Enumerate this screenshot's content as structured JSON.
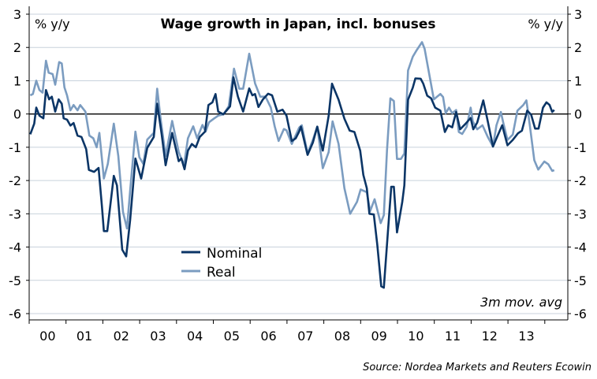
{
  "chart_data": {
    "type": "line",
    "title": "Wage growth in Japan, incl. bonuses",
    "ylabel_left": "% y/y",
    "ylabel_right": "% y/y",
    "ylim": [
      -6,
      3
    ],
    "yticks": [
      3,
      2,
      1,
      0,
      -1,
      -2,
      -3,
      -4,
      -5,
      -6
    ],
    "xlim": [
      2000,
      2014.6
    ],
    "xtick_labels": [
      "00",
      "01",
      "02",
      "03",
      "04",
      "05",
      "06",
      "07",
      "08",
      "09",
      "10",
      "11",
      "12",
      "13"
    ],
    "grid": true,
    "legend_position": "bottom-left-inside",
    "annotation": "3m mov. avg",
    "source": "Source: Nordea Markets and Reuters Ecowin",
    "colors": {
      "Nominal": "#0b3566",
      "Real": "#7b9cc0",
      "grid": "#c8d2dc"
    },
    "series": [
      {
        "name": "Nominal",
        "points": [
          [
            2000.03,
            -0.61
          ],
          [
            2000.136,
            -0.29
          ],
          [
            2000.193,
            0.19
          ],
          [
            2000.278,
            -0.05
          ],
          [
            2000.385,
            -0.13
          ],
          [
            2000.457,
            0.72
          ],
          [
            2000.542,
            0.44
          ],
          [
            2000.614,
            0.52
          ],
          [
            2000.707,
            0.07
          ],
          [
            2000.8,
            0.44
          ],
          [
            2000.885,
            0.31
          ],
          [
            2000.935,
            -0.13
          ],
          [
            2001.028,
            -0.17
          ],
          [
            2001.12,
            -0.35
          ],
          [
            2001.206,
            -0.27
          ],
          [
            2001.313,
            -0.65
          ],
          [
            2001.42,
            -0.69
          ],
          [
            2001.549,
            -1.06
          ],
          [
            2001.62,
            -1.68
          ],
          [
            2001.763,
            -1.74
          ],
          [
            2001.884,
            -1.62
          ],
          [
            2001.977,
            -2.79
          ],
          [
            2002.027,
            -3.52
          ],
          [
            2002.12,
            -3.52
          ],
          [
            2002.298,
            -1.86
          ],
          [
            2002.384,
            -2.15
          ],
          [
            2002.527,
            -4.08
          ],
          [
            2002.634,
            -4.28
          ],
          [
            2002.741,
            -3.19
          ],
          [
            2002.884,
            -1.34
          ],
          [
            2003.041,
            -1.94
          ],
          [
            2003.205,
            -1.02
          ],
          [
            2003.383,
            -0.69
          ],
          [
            2003.476,
            0.31
          ],
          [
            2003.597,
            -0.61
          ],
          [
            2003.704,
            -1.54
          ],
          [
            2003.883,
            -0.57
          ],
          [
            2004.061,
            -1.42
          ],
          [
            2004.133,
            -1.34
          ],
          [
            2004.218,
            -1.66
          ],
          [
            2004.311,
            -1.1
          ],
          [
            2004.418,
            -0.9
          ],
          [
            2004.525,
            -1.0
          ],
          [
            2004.632,
            -0.69
          ],
          [
            2004.775,
            -0.53
          ],
          [
            2004.868,
            0.27
          ],
          [
            2004.975,
            0.35
          ],
          [
            2005.06,
            0.6
          ],
          [
            2005.132,
            0.07
          ],
          [
            2005.275,
            -0.01
          ],
          [
            2005.453,
            0.23
          ],
          [
            2005.546,
            1.1
          ],
          [
            2005.668,
            0.52
          ],
          [
            2005.81,
            0.07
          ],
          [
            2005.975,
            0.77
          ],
          [
            2006.06,
            0.56
          ],
          [
            2006.132,
            0.6
          ],
          [
            2006.224,
            0.21
          ],
          [
            2006.346,
            0.44
          ],
          [
            2006.488,
            0.61
          ],
          [
            2006.595,
            0.56
          ],
          [
            2006.738,
            0.07
          ],
          [
            2006.88,
            0.13
          ],
          [
            2006.988,
            -0.05
          ],
          [
            2007.13,
            -0.81
          ],
          [
            2007.237,
            -0.73
          ],
          [
            2007.33,
            -0.53
          ],
          [
            2007.38,
            -0.38
          ],
          [
            2007.559,
            -1.23
          ],
          [
            2007.702,
            -0.86
          ],
          [
            2007.823,
            -0.38
          ],
          [
            2007.973,
            -1.1
          ],
          [
            2008.13,
            -0.06
          ],
          [
            2008.223,
            0.91
          ],
          [
            2008.401,
            0.43
          ],
          [
            2008.559,
            -0.14
          ],
          [
            2008.702,
            -0.5
          ],
          [
            2008.83,
            -0.54
          ],
          [
            2008.987,
            -1.1
          ],
          [
            2009.073,
            -1.83
          ],
          [
            2009.166,
            -2.23
          ],
          [
            2009.237,
            -3.0
          ],
          [
            2009.358,
            -3.02
          ],
          [
            2009.451,
            -3.93
          ],
          [
            2009.558,
            -5.18
          ],
          [
            2009.63,
            -5.22
          ],
          [
            2009.737,
            -3.6
          ],
          [
            2009.83,
            -2.19
          ],
          [
            2009.901,
            -2.19
          ],
          [
            2009.987,
            -3.56
          ],
          [
            2010.13,
            -2.64
          ],
          [
            2010.187,
            -2.15
          ],
          [
            2010.287,
            0.43
          ],
          [
            2010.415,
            0.79
          ],
          [
            2010.487,
            1.07
          ],
          [
            2010.63,
            1.06
          ],
          [
            2010.701,
            0.91
          ],
          [
            2010.808,
            0.55
          ],
          [
            2010.915,
            0.47
          ],
          [
            2011.023,
            0.19
          ],
          [
            2011.165,
            0.1
          ],
          [
            2011.287,
            -0.54
          ],
          [
            2011.38,
            -0.34
          ],
          [
            2011.487,
            -0.4
          ],
          [
            2011.594,
            0.06
          ],
          [
            2011.701,
            -0.46
          ],
          [
            2011.844,
            -0.3
          ],
          [
            2011.987,
            -0.12
          ],
          [
            2012.058,
            -0.46
          ],
          [
            2012.165,
            -0.26
          ],
          [
            2012.33,
            0.41
          ],
          [
            2012.451,
            -0.22
          ],
          [
            2012.594,
            -0.98
          ],
          [
            2012.701,
            -0.7
          ],
          [
            2012.844,
            -0.34
          ],
          [
            2012.987,
            -0.94
          ],
          [
            2013.13,
            -0.78
          ],
          [
            2013.273,
            -0.58
          ],
          [
            2013.38,
            -0.5
          ],
          [
            2013.522,
            0.1
          ],
          [
            2013.63,
            -0.02
          ],
          [
            2013.737,
            -0.44
          ],
          [
            2013.83,
            -0.44
          ],
          [
            2013.951,
            0.19
          ],
          [
            2014.044,
            0.35
          ],
          [
            2014.13,
            0.27
          ],
          [
            2014.201,
            0.06
          ],
          [
            2014.258,
            0.12
          ]
        ]
      },
      {
        "name": "Real",
        "points": [
          [
            2000.03,
            0.56
          ],
          [
            2000.1,
            0.6
          ],
          [
            2000.193,
            1.0
          ],
          [
            2000.278,
            0.72
          ],
          [
            2000.364,
            0.64
          ],
          [
            2000.457,
            1.6
          ],
          [
            2000.528,
            1.24
          ],
          [
            2000.635,
            1.2
          ],
          [
            2000.707,
            0.88
          ],
          [
            2000.814,
            1.56
          ],
          [
            2000.885,
            1.52
          ],
          [
            2000.957,
            0.8
          ],
          [
            2001.028,
            0.56
          ],
          [
            2001.12,
            0.11
          ],
          [
            2001.206,
            0.27
          ],
          [
            2001.313,
            0.11
          ],
          [
            2001.385,
            0.27
          ],
          [
            2001.527,
            0.07
          ],
          [
            2001.634,
            -0.65
          ],
          [
            2001.741,
            -0.73
          ],
          [
            2001.834,
            -1.0
          ],
          [
            2001.906,
            -0.57
          ],
          [
            2002.027,
            -1.94
          ],
          [
            2002.134,
            -1.5
          ],
          [
            2002.298,
            -0.29
          ],
          [
            2002.419,
            -1.26
          ],
          [
            2002.548,
            -2.95
          ],
          [
            2002.655,
            -3.44
          ],
          [
            2002.741,
            -2.31
          ],
          [
            2002.884,
            -0.53
          ],
          [
            2002.991,
            -1.3
          ],
          [
            2003.098,
            -1.5
          ],
          [
            2003.205,
            -0.77
          ],
          [
            2003.383,
            -0.57
          ],
          [
            2003.476,
            0.76
          ],
          [
            2003.576,
            -0.21
          ],
          [
            2003.704,
            -1.26
          ],
          [
            2003.883,
            -0.21
          ],
          [
            2004.061,
            -1.14
          ],
          [
            2004.204,
            -1.54
          ],
          [
            2004.311,
            -0.73
          ],
          [
            2004.454,
            -0.37
          ],
          [
            2004.561,
            -0.73
          ],
          [
            2004.704,
            -0.33
          ],
          [
            2004.79,
            -0.53
          ],
          [
            2004.882,
            -0.25
          ],
          [
            2005.025,
            -0.13
          ],
          [
            2005.132,
            -0.05
          ],
          [
            2005.275,
            -0.01
          ],
          [
            2005.418,
            0.23
          ],
          [
            2005.56,
            1.36
          ],
          [
            2005.703,
            0.76
          ],
          [
            2005.81,
            0.76
          ],
          [
            2005.975,
            1.81
          ],
          [
            2006.132,
            0.92
          ],
          [
            2006.274,
            0.52
          ],
          [
            2006.417,
            0.52
          ],
          [
            2006.56,
            0.19
          ],
          [
            2006.667,
            -0.37
          ],
          [
            2006.774,
            -0.81
          ],
          [
            2006.916,
            -0.45
          ],
          [
            2006.988,
            -0.49
          ],
          [
            2007.13,
            -0.9
          ],
          [
            2007.33,
            -0.41
          ],
          [
            2007.402,
            -0.34
          ],
          [
            2007.559,
            -1.19
          ],
          [
            2007.702,
            -0.78
          ],
          [
            2007.823,
            -0.38
          ],
          [
            2007.973,
            -1.63
          ],
          [
            2008.13,
            -1.15
          ],
          [
            2008.237,
            -0.22
          ],
          [
            2008.401,
            -0.9
          ],
          [
            2008.559,
            -2.23
          ],
          [
            2008.716,
            -3.0
          ],
          [
            2008.901,
            -2.64
          ],
          [
            2009.001,
            -2.27
          ],
          [
            2009.166,
            -2.35
          ],
          [
            2009.258,
            -2.92
          ],
          [
            2009.38,
            -2.56
          ],
          [
            2009.544,
            -3.28
          ],
          [
            2009.63,
            -3.04
          ],
          [
            2009.716,
            -1.1
          ],
          [
            2009.808,
            0.47
          ],
          [
            2009.901,
            0.39
          ],
          [
            2009.987,
            -1.35
          ],
          [
            2010.094,
            -1.35
          ],
          [
            2010.187,
            -1.19
          ],
          [
            2010.287,
            1.31
          ],
          [
            2010.415,
            1.72
          ],
          [
            2010.522,
            1.92
          ],
          [
            2010.665,
            2.16
          ],
          [
            2010.737,
            1.96
          ],
          [
            2010.844,
            1.31
          ],
          [
            2010.987,
            0.44
          ],
          [
            2011.165,
            0.6
          ],
          [
            2011.237,
            0.51
          ],
          [
            2011.308,
            0.02
          ],
          [
            2011.401,
            0.19
          ],
          [
            2011.487,
            0.02
          ],
          [
            2011.594,
            0.12
          ],
          [
            2011.665,
            -0.54
          ],
          [
            2011.758,
            -0.6
          ],
          [
            2011.88,
            -0.38
          ],
          [
            2011.987,
            0.19
          ],
          [
            2012.044,
            -0.22
          ],
          [
            2012.165,
            -0.46
          ],
          [
            2012.308,
            -0.34
          ],
          [
            2012.451,
            -0.69
          ],
          [
            2012.594,
            -0.98
          ],
          [
            2012.687,
            -0.34
          ],
          [
            2012.808,
            0.06
          ],
          [
            2012.88,
            -0.3
          ],
          [
            2012.987,
            -0.78
          ],
          [
            2013.13,
            -0.62
          ],
          [
            2013.258,
            0.1
          ],
          [
            2013.415,
            0.27
          ],
          [
            2013.501,
            0.41
          ],
          [
            2013.594,
            -0.34
          ],
          [
            2013.715,
            -1.39
          ],
          [
            2013.822,
            -1.67
          ],
          [
            2013.987,
            -1.43
          ],
          [
            2014.094,
            -1.51
          ],
          [
            2014.201,
            -1.71
          ],
          [
            2014.258,
            -1.69
          ]
        ]
      }
    ]
  }
}
